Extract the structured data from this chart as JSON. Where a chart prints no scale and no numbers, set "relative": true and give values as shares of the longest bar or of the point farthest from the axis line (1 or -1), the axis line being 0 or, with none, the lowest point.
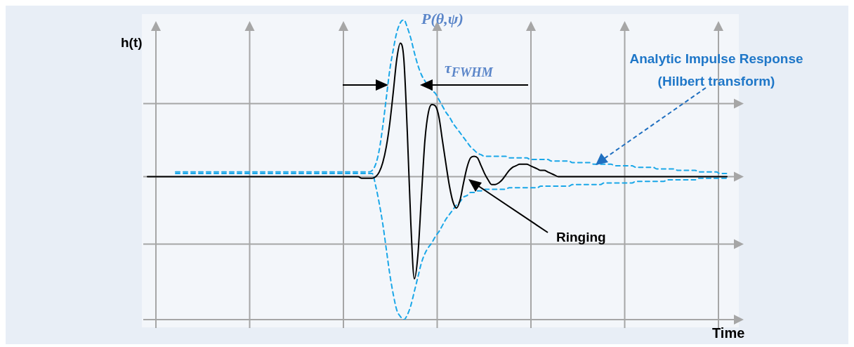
{
  "chart_data": {
    "type": "line",
    "relative": true,
    "grid": true,
    "legend": false,
    "tick_labels": false,
    "marker": "none",
    "xlabel": "Time",
    "ylabel": "h(t)",
    "annotations": [
      "P(θ,ψ)",
      "τ$_{FWHM}$",
      "Analytic Impulse Response (Hilbert transform)",
      "Ringing"
    ],
    "categories": [
      null,
      null,
      null,
      null,
      null,
      null,
      null,
      null,
      null,
      null,
      null,
      null,
      null,
      null,
      null,
      null,
      null,
      null,
      null,
      null,
      null,
      null,
      null,
      null,
      null,
      null,
      null,
      null,
      null,
      null,
      null,
      null,
      null,
      null,
      null,
      null,
      null,
      null,
      null,
      null,
      null,
      null,
      null,
      null,
      null,
      null,
      null,
      null,
      null,
      null,
      null,
      null,
      null,
      null,
      null,
      null,
      null,
      null,
      null,
      null,
      null,
      null,
      null,
      null,
      null,
      null,
      null,
      null,
      null,
      null,
      null,
      null,
      null,
      null,
      null,
      null,
      null,
      null,
      null,
      null,
      null,
      null,
      null,
      null,
      null,
      null,
      null,
      null,
      null,
      null,
      null,
      null,
      null,
      null,
      null,
      null,
      null,
      null,
      null,
      null,
      null,
      null,
      null,
      null,
      null,
      null,
      null,
      null,
      null,
      null,
      null,
      null,
      null,
      null,
      null,
      null,
      null,
      null,
      null,
      null,
      null,
      null,
      null,
      null,
      null,
      null,
      null,
      null,
      null,
      null,
      null,
      null,
      null,
      null,
      null,
      null,
      null,
      null,
      null,
      null,
      null,
      null,
      null,
      null,
      null,
      null,
      null,
      null,
      null,
      null,
      null,
      null,
      null,
      null,
      null,
      null,
      null,
      null,
      null,
      null,
      null,
      null,
      null,
      null,
      null,
      null
    ],
    "series": [
      {
        "color": "#000000",
        "line_style": "solid",
        "values": [
          0,
          0,
          0,
          0,
          0,
          0,
          0,
          0,
          0,
          0,
          0,
          0,
          0,
          0,
          0,
          0,
          0,
          0,
          0,
          0,
          0,
          0,
          0,
          0,
          0,
          0,
          0,
          0,
          0,
          0,
          0,
          0,
          0,
          0,
          0,
          0,
          0,
          0,
          0,
          0,
          0,
          0,
          0,
          0,
          0,
          0,
          0,
          0,
          0,
          0,
          0,
          0,
          0,
          0,
          0,
          0,
          0,
          0,
          0,
          0,
          0,
          -0.01,
          -0.01,
          -0.01,
          -0.01,
          0,
          0.03,
          0.09,
          0.19,
          0.34,
          0.54,
          0.75,
          0.85,
          0.75,
          0.28,
          -0.3,
          -0.65,
          -0.5,
          -0.13,
          0.23,
          0.41,
          0.46,
          0.45,
          0.38,
          0.23,
          0.08,
          -0.06,
          -0.16,
          -0.2,
          -0.15,
          -0.04,
          0.06,
          0.12,
          0.13,
          0.12,
          0.07,
          0.02,
          -0.02,
          -0.05,
          -0.05,
          -0.04,
          -0.02,
          0.01,
          0.04,
          0.06,
          0.07,
          0.08,
          0.08,
          0.08,
          0.07,
          0.06,
          0.05,
          0.04,
          0.04,
          0.03,
          0.02,
          0.01,
          0,
          0,
          0,
          0,
          0,
          0,
          0,
          0,
          0,
          0,
          0,
          0,
          0,
          0,
          0,
          0,
          0,
          0,
          0,
          0,
          0,
          0,
          0,
          0,
          0,
          0,
          0,
          0,
          0,
          0,
          0,
          0,
          0,
          0,
          0,
          0,
          0,
          0,
          0,
          0,
          0,
          0,
          0,
          0,
          0,
          0,
          0,
          0,
          0
        ]
      },
      {
        "color": "#1aa7e8",
        "line_style": "dashed",
        "values": [
          null,
          null,
          null,
          null,
          null,
          null,
          null,
          null,
          0.03,
          0.03,
          0.03,
          0.03,
          0.03,
          0.03,
          0.03,
          0.03,
          0.03,
          0.03,
          0.03,
          0.03,
          0.03,
          0.03,
          0.03,
          0.03,
          0.03,
          0.03,
          0.03,
          0.03,
          0.03,
          0.03,
          0.03,
          0.03,
          0.03,
          0.03,
          0.03,
          0.03,
          0.03,
          0.03,
          0.03,
          0.03,
          0.03,
          0.03,
          0.03,
          0.03,
          0.03,
          0.03,
          0.03,
          0.03,
          0.03,
          0.03,
          0.03,
          0.03,
          0.03,
          0.03,
          0.03,
          0.03,
          0.03,
          0.03,
          0.03,
          0.03,
          0.03,
          0.03,
          0.03,
          0.03,
          0.04,
          0.08,
          0.17,
          0.32,
          0.5,
          0.68,
          0.81,
          0.92,
          0.98,
          1,
          0.95,
          0.88,
          0.79,
          0.71,
          0.65,
          0.61,
          0.58,
          0.55,
          0.53,
          0.49,
          0.45,
          0.41,
          0.38,
          0.34,
          0.31,
          0.28,
          0.25,
          0.22,
          0.19,
          0.17,
          0.15,
          0.14,
          0.13,
          0.13,
          0.13,
          0.13,
          0.13,
          0.13,
          0.13,
          0.12,
          0.12,
          0.12,
          0.12,
          0.12,
          0.12,
          0.11,
          0.11,
          0.11,
          0.11,
          0.11,
          0.11,
          0.1,
          0.1,
          0.1,
          0.1,
          0.1,
          0.1,
          0.09,
          0.09,
          0.09,
          0.09,
          0.09,
          0.09,
          0.08,
          0.08,
          0.08,
          0.08,
          0.08,
          0.08,
          0.07,
          0.07,
          0.07,
          0.07,
          0.07,
          0.07,
          0.06,
          0.06,
          0.06,
          0.06,
          0.06,
          0.06,
          0.05,
          0.05,
          0.05,
          0.05,
          0.05,
          0.05,
          0.04,
          0.04,
          0.04,
          0.04,
          0.04,
          0.04,
          0.03,
          0.03,
          0.03,
          0.03,
          0.03,
          0.03,
          0.02,
          0.02,
          0.02
        ]
      },
      {
        "color": "#1aa7e8",
        "line_style": "dashed",
        "values": [
          null,
          null,
          null,
          null,
          null,
          null,
          null,
          null,
          0.02,
          0.02,
          0.02,
          0.02,
          0.02,
          0.02,
          0.02,
          0.02,
          0.02,
          0.02,
          0.02,
          0.02,
          0.02,
          0.02,
          0.02,
          0.02,
          0.02,
          0.02,
          0.02,
          0.02,
          0.02,
          0.02,
          0.02,
          0.02,
          0.02,
          0.02,
          0.02,
          0.02,
          0.02,
          0.02,
          0.02,
          0.02,
          0.02,
          0.02,
          0.02,
          0.02,
          0.02,
          0.02,
          0.02,
          0.02,
          0.02,
          0.02,
          0.02,
          0.02,
          0.02,
          0.02,
          0.02,
          0.02,
          0.02,
          0.02,
          0.02,
          0.02,
          0.02,
          0.02,
          0.02,
          0.02,
          0.02,
          -0.06,
          -0.17,
          -0.3,
          -0.46,
          -0.62,
          -0.75,
          -0.85,
          -0.89,
          -0.91,
          -0.88,
          -0.82,
          -0.73,
          -0.64,
          -0.55,
          -0.49,
          -0.45,
          -0.42,
          -0.38,
          -0.35,
          -0.31,
          -0.27,
          -0.24,
          -0.21,
          -0.18,
          -0.16,
          -0.13,
          -0.12,
          -0.1,
          -0.1,
          -0.09,
          -0.09,
          -0.08,
          -0.08,
          -0.08,
          -0.08,
          -0.08,
          -0.08,
          -0.08,
          -0.07,
          -0.07,
          -0.07,
          -0.07,
          -0.07,
          -0.07,
          -0.07,
          -0.07,
          -0.07,
          -0.06,
          -0.06,
          -0.06,
          -0.06,
          -0.06,
          -0.06,
          -0.06,
          -0.06,
          -0.06,
          -0.05,
          -0.05,
          -0.05,
          -0.05,
          -0.05,
          -0.05,
          -0.05,
          -0.05,
          -0.05,
          -0.04,
          -0.04,
          -0.04,
          -0.04,
          -0.04,
          -0.04,
          -0.04,
          -0.04,
          -0.04,
          -0.03,
          -0.03,
          -0.03,
          -0.03,
          -0.03,
          -0.03,
          -0.03,
          -0.03,
          -0.03,
          -0.02,
          -0.02,
          -0.02,
          -0.02,
          -0.02,
          -0.02,
          -0.02,
          -0.02,
          -0.02,
          -0.01,
          -0.01,
          -0.01,
          -0.01,
          -0.01,
          -0.01,
          -0.01,
          -0.01,
          -0.01
        ]
      }
    ]
  }
}
